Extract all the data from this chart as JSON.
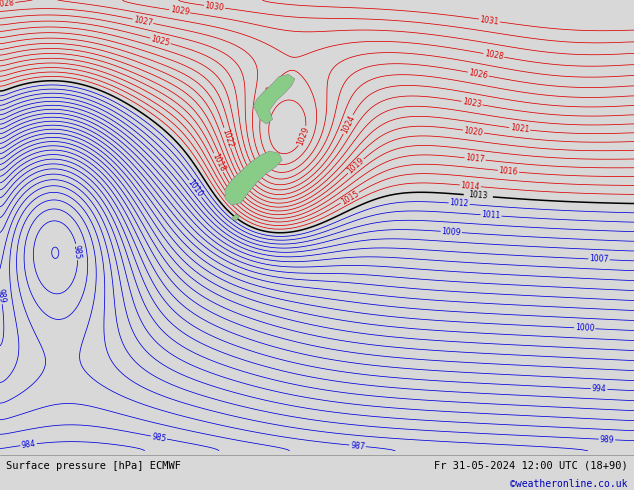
{
  "title_left": "Surface pressure [hPa] ECMWF",
  "title_right": "Fr 31-05-2024 12:00 UTC (18+90)",
  "copyright": "©weatheronline.co.uk",
  "bg_color": "#d8d8d8",
  "fig_width": 6.34,
  "fig_height": 4.9,
  "dpi": 100,
  "label_fontsize": 5.5,
  "title_fontsize": 7.5,
  "copyright_fontsize": 7.0
}
